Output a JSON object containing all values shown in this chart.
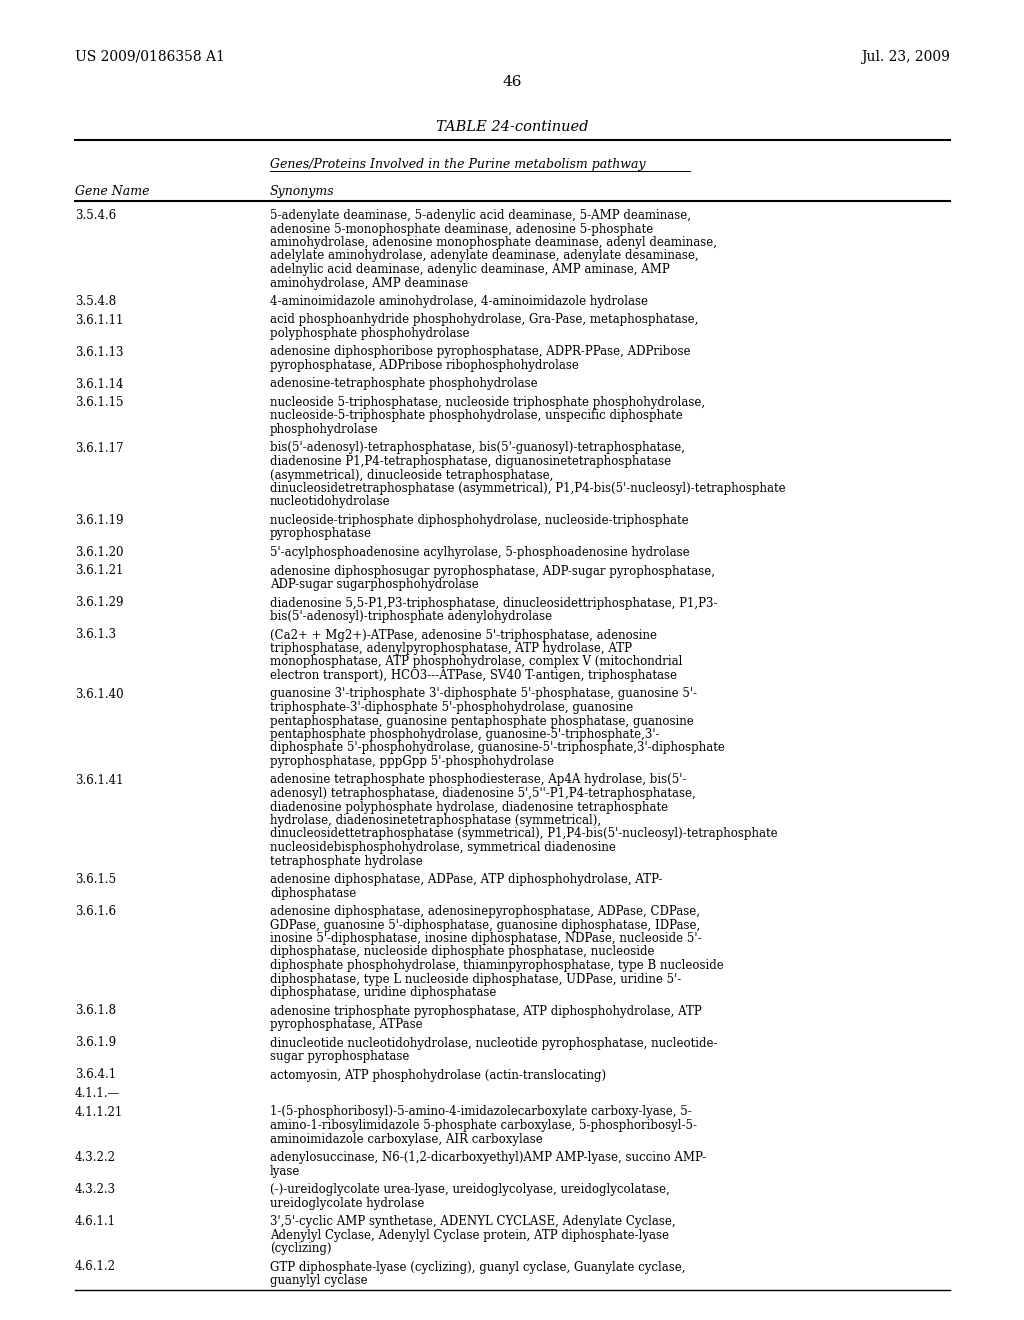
{
  "header_left": "US 2009/0186358 A1",
  "header_right": "Jul. 23, 2009",
  "page_number": "46",
  "table_title": "TABLE 24-continued",
  "table_subtitle": "Genes/Proteins Involved in the Purine metabolism pathway",
  "col1_header": "Gene Name",
  "col2_header": "Synonyms",
  "rows": [
    [
      "3.5.4.6",
      "5-adenylate deaminase, 5-adenylic acid deaminase, 5-AMP deaminase,\nadenosine 5-monophosphate deaminase, adenosine 5-phosphate\naminohydrolase, adenosine monophosphate deaminase, adenyl deaminase,\nadelylate aminohydrolase, adenylate deaminase, adenylate desaminase,\nadelnylic acid deaminase, adenylic deaminase, AMP aminase, AMP\naminohydrolase, AMP deaminase"
    ],
    [
      "3.5.4.8",
      "4-aminoimidazole aminohydrolase, 4-aminoimidazole hydrolase"
    ],
    [
      "3.6.1.11",
      "acid phosphoanhydride phosphohydrolase, Gra-Pase, metaphosphatase,\npolyphosphate phosphohydrolase"
    ],
    [
      "3.6.1.13",
      "adenosine diphosphoribose pyrophosphatase, ADPR-PPase, ADPribose\npyrophosphatase, ADPribose ribophosphohydrolase"
    ],
    [
      "3.6.1.14",
      "adenosine-tetraphosphate phosphohydrolase"
    ],
    [
      "3.6.1.15",
      "nucleoside 5-triphosphatase, nucleoside triphosphate phosphohydrolase,\nnucleoside-5-triphosphate phosphohydrolase, unspecific diphosphate\nphosphohydrolase"
    ],
    [
      "3.6.1.17",
      "bis(5'-adenosyl)-tetraphosphatase, bis(5'-guanosyl)-tetraphosphatase,\ndiadenosine P1,P4-tetraphosphatase, diguanosinetetraphosphatase\n(asymmetrical), dinucleoside tetraphosphatase,\ndinucleosidetretraphosphatase (asymmetrical), P1,P4-bis(5'-nucleosyl)-tetraphosphate\nnucleotidohydrolase"
    ],
    [
      "3.6.1.19",
      "nucleoside-triphosphate diphosphohydrolase, nucleoside-triphosphate\npyrophosphatase"
    ],
    [
      "3.6.1.20",
      "5'-acylphosphoadenosine acylhyrolase, 5-phosphoadenosine hydrolase"
    ],
    [
      "3.6.1.21",
      "adenosine diphosphosugar pyrophosphatase, ADP-sugar pyrophosphatase,\nADP-sugar sugarphosphohydrolase"
    ],
    [
      "3.6.1.29",
      "diadenosine 5,5-P1,P3-triphosphatase, dinucleosidettriphosphatase, P1,P3-\nbis(5'-adenosyl)-triphosphate adenylohydrolase"
    ],
    [
      "3.6.1.3",
      "(Ca2+ + Mg2+)-ATPase, adenosine 5'-triphosphatase, adenosine\ntriphosphatase, adenylpyrophosphatase, ATP hydrolase, ATP\nmonophosphatase, ATP phosphohydrolase, complex V (mitochondrial\nelectron transport), HCO3---ATPase, SV40 T-antigen, triphosphatase"
    ],
    [
      "3.6.1.40",
      "guanosine 3'-triphosphate 3'-diphosphate 5'-phosphatase, guanosine 5'-\ntriphosphate-3'-diphosphate 5'-phosphohydrolase, guanosine\npentaphosphatase, guanosine pentaphosphate phosphatase, guanosine\npentaphosphate phosphohydrolase, guanosine-5'-triphosphate,3'-\ndiphosphate 5'-phosphohydrolase, guanosine-5'-triphosphate,3'-diphosphate\npyrophosphatase, pppGpp 5'-phosphohydrolase"
    ],
    [
      "3.6.1.41",
      "adenosine tetraphosphate phosphodiesterase, Ap4A hydrolase, bis(5'-\nadenosyl) tetraphosphatase, diadenosine 5',5''-P1,P4-tetraphosphatase,\ndiadenosine polyphosphate hydrolase, diadenosine tetraphosphate\nhydrolase, diadenosinetetraphosphatase (symmetrical),\ndinucleosidettetraphosphatase (symmetrical), P1,P4-bis(5'-nucleosyl)-tetraphosphate\nnucleosidebisphosphohydrolase, symmetrical diadenosine\ntetraphosphate hydrolase"
    ],
    [
      "3.6.1.5",
      "adenosine diphosphatase, ADPase, ATP diphosphohydrolase, ATP-\ndiphosphatase"
    ],
    [
      "3.6.1.6",
      "adenosine diphosphatase, adenosinepyrophosphatase, ADPase, CDPase,\nGDPase, guanosine 5'-diphosphatase, guanosine diphosphatase, IDPase,\ninosine 5'-diphosphatase, inosine diphosphatase, NDPase, nucleoside 5'-\ndiphosphatase, nucleoside diphosphate phosphatase, nucleoside\ndiphosphate phosphohydrolase, thiaminpyrophosphatase, type B nucleoside\ndiphosphatase, type L nucleoside diphosphatase, UDPase, uridine 5'-\ndiphosphatase, uridine diphosphatase"
    ],
    [
      "3.6.1.8",
      "adenosine triphosphate pyrophosphatase, ATP diphosphohydrolase, ATP\npyrophosphatase, ATPase"
    ],
    [
      "3.6.1.9",
      "dinucleotide nucleotidohydrolase, nucleotide pyrophosphatase, nucleotide-\nsugar pyrophosphatase"
    ],
    [
      "3.6.4.1",
      "actomyosin, ATP phosphohydrolase (actin-translocating)"
    ],
    [
      "4.1.1.—",
      ""
    ],
    [
      "4.1.1.21",
      "1-(5-phosphoribosyl)-5-amino-4-imidazolecarboxylate carboxy-lyase, 5-\namino-1-ribosylimidazole 5-phosphate carboxylase, 5-phosphoribosyl-5-\naminoimidazole carboxylase, AIR carboxylase"
    ],
    [
      "4.3.2.2",
      "adenylosuccinase, N6-(1,2-dicarboxyethyl)AMP AMP-lyase, succino AMP-\nlyase"
    ],
    [
      "4.3.2.3",
      "(-)-ureidoglycolate urea-lyase, ureidoglycolyase, ureidoglycolatase,\nureidoglycolate hydrolase"
    ],
    [
      "4.6.1.1",
      "3',5'-cyclic AMP synthetase, ADENYL CYCLASE, Adenylate Cyclase,\nAdenylyl Cyclase, Adenylyl Cyclase protein, ATP diphosphate-lyase\n(cyclizing)"
    ],
    [
      "4.6.1.2",
      "GTP diphosphate-lyase (cyclizing), guanyl cyclase, Guanylate cyclase,\nguanylyl cyclase"
    ]
  ]
}
